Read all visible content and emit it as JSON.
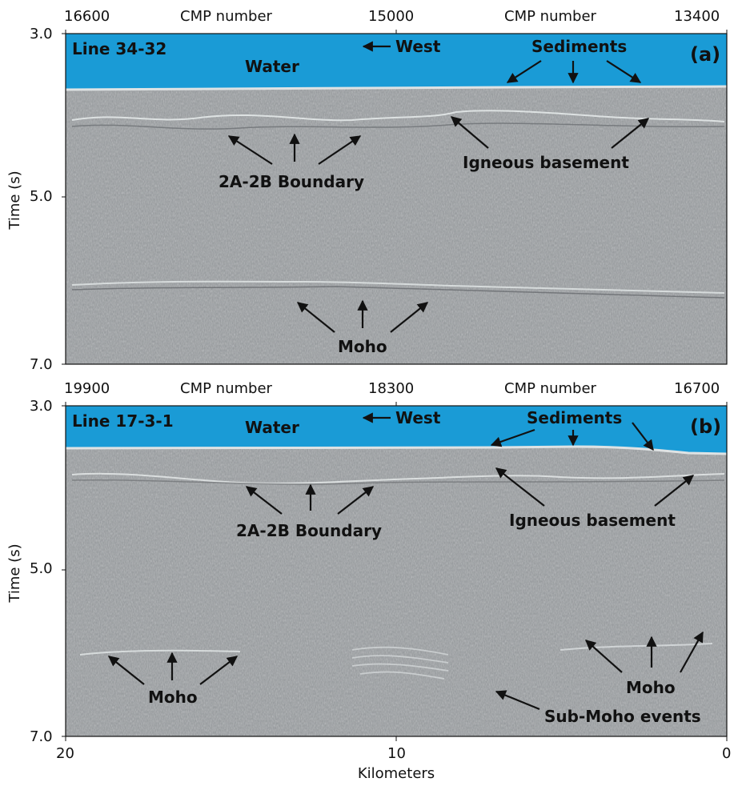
{
  "colors": {
    "water": "#1a9bd6",
    "seismic": "#8f9396",
    "ink": "#111111"
  },
  "top_axis_title": "CMP  number",
  "bottom_axis": {
    "label": "Kilometers",
    "ticks": [
      "20",
      "10",
      "0"
    ]
  },
  "left_axis": {
    "label": "Time (s)",
    "ticks": [
      "3.0",
      "5.0",
      "7.0"
    ]
  },
  "panels": [
    {
      "line": "Line 34-32",
      "tag": "(a)",
      "cmp_ticks": [
        "16600",
        "15000",
        "13400"
      ],
      "labels": {
        "water": "Water",
        "west": "West",
        "sediments": "Sediments",
        "boundary": "2A-2B Boundary",
        "basement": "Igneous basement",
        "moho": "Moho"
      }
    },
    {
      "line": "Line 17-3-1",
      "tag": "(b)",
      "cmp_ticks": [
        "19900",
        "18300",
        "16700"
      ],
      "labels": {
        "water": "Water",
        "west": "West",
        "sediments": "Sediments",
        "boundary": "2A-2B Boundary",
        "basement": "Igneous basement",
        "moho_left": "Moho",
        "moho_right": "Moho",
        "submoho": "Sub-Moho events"
      }
    }
  ]
}
